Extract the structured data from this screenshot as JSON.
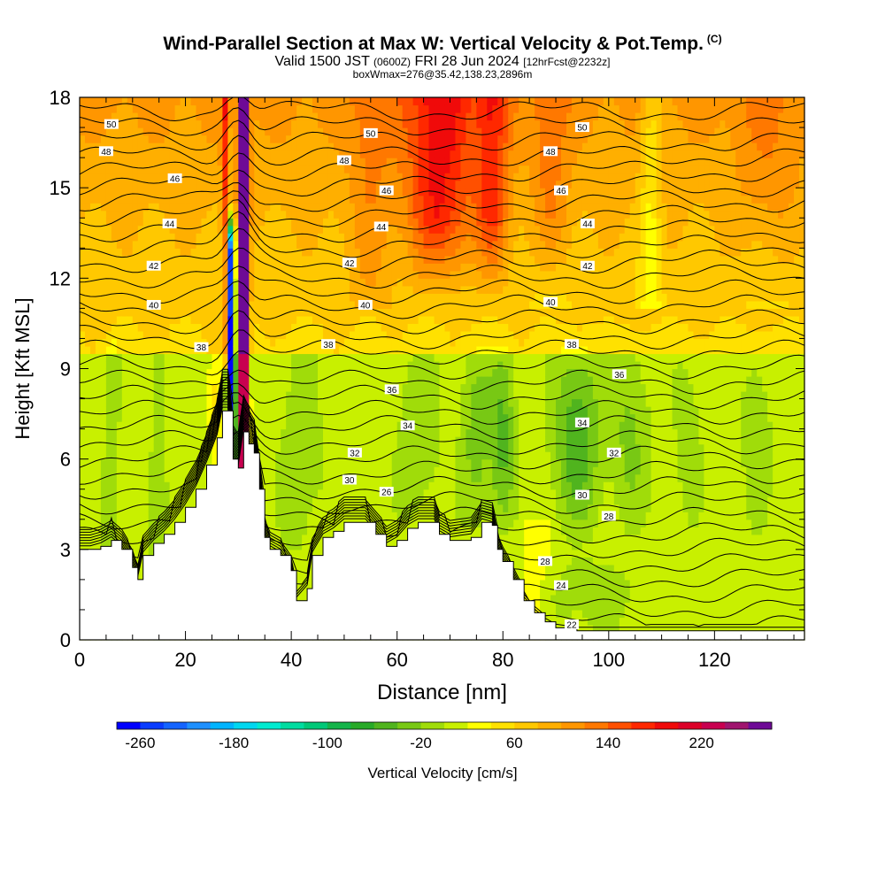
{
  "title": {
    "main": "Wind-Parallel Section at Max W: Vertical Velocity & Pot.Temp.",
    "copyright": "(C)",
    "valid_prefix": "Valid 1500 JST",
    "valid_utc": "(0600Z)",
    "valid_date": "FRI 28 Jun 2024",
    "forecast": "[12hrFcst@2232z]",
    "box_info": "boxWmax=276@35.42,138.23,2896m"
  },
  "chart_data": {
    "type": "heatmap",
    "xlabel": "Distance [nm]",
    "ylabel": "Height [Kft MSL]",
    "xlim": [
      0,
      137
    ],
    "ylim": [
      0,
      18
    ],
    "x_ticks": [
      "0",
      "20",
      "40",
      "60",
      "80",
      "100",
      "120"
    ],
    "y_ticks": [
      "0",
      "3",
      "6",
      "9",
      "12",
      "15",
      "18"
    ],
    "colorbar": {
      "label": "Vertical Velocity [cm/s]",
      "tick_labels": [
        "-260",
        "-180",
        "-100",
        "-20",
        "60",
        "140",
        "220"
      ],
      "min": -280,
      "max": 280,
      "step": 20
    },
    "terrain": [
      [
        0,
        3.0
      ],
      [
        2,
        3.0
      ],
      [
        4,
        3.1
      ],
      [
        6,
        3.3
      ],
      [
        8,
        3.0
      ],
      [
        10,
        2.4
      ],
      [
        11,
        2.0
      ],
      [
        12,
        2.8
      ],
      [
        14,
        3.2
      ],
      [
        16,
        3.5
      ],
      [
        18,
        3.9
      ],
      [
        20,
        4.4
      ],
      [
        22,
        5.0
      ],
      [
        24,
        5.8
      ],
      [
        26,
        6.7
      ],
      [
        27,
        7.6
      ],
      [
        28,
        7.6
      ],
      [
        29,
        6.0
      ],
      [
        30,
        5.7
      ],
      [
        31,
        6.9
      ],
      [
        32,
        6.5
      ],
      [
        33,
        6.2
      ],
      [
        34,
        5.0
      ],
      [
        35,
        3.4
      ],
      [
        36,
        3.0
      ],
      [
        38,
        2.8
      ],
      [
        40,
        2.3
      ],
      [
        41,
        1.3
      ],
      [
        43,
        1.7
      ],
      [
        44,
        2.8
      ],
      [
        46,
        3.4
      ],
      [
        48,
        3.6
      ],
      [
        50,
        3.9
      ],
      [
        54,
        3.9
      ],
      [
        56,
        3.5
      ],
      [
        58,
        3.1
      ],
      [
        60,
        3.3
      ],
      [
        62,
        3.7
      ],
      [
        64,
        3.9
      ],
      [
        67,
        3.9
      ],
      [
        68,
        3.5
      ],
      [
        70,
        3.3
      ],
      [
        74,
        3.4
      ],
      [
        76,
        3.9
      ],
      [
        78,
        3.8
      ],
      [
        79,
        3.0
      ],
      [
        80,
        2.6
      ],
      [
        82,
        2.0
      ],
      [
        84,
        1.3
      ],
      [
        86,
        0.9
      ],
      [
        88,
        0.6
      ],
      [
        90,
        0.4
      ],
      [
        94,
        0.3
      ],
      [
        100,
        0.3
      ],
      [
        110,
        0.3
      ],
      [
        120,
        0.3
      ],
      [
        130,
        0.3
      ],
      [
        137,
        0.3
      ]
    ],
    "theta_labels": [
      {
        "text": "50",
        "x": 6,
        "y": 17.1
      },
      {
        "text": "48",
        "x": 5,
        "y": 16.2
      },
      {
        "text": "46",
        "x": 18,
        "y": 15.3
      },
      {
        "text": "44",
        "x": 17,
        "y": 13.8
      },
      {
        "text": "42",
        "x": 14,
        "y": 12.4
      },
      {
        "text": "40",
        "x": 14,
        "y": 11.1
      },
      {
        "text": "38",
        "x": 23,
        "y": 9.7
      },
      {
        "text": "50",
        "x": 55,
        "y": 16.8
      },
      {
        "text": "48",
        "x": 50,
        "y": 15.9
      },
      {
        "text": "46",
        "x": 58,
        "y": 14.9
      },
      {
        "text": "44",
        "x": 57,
        "y": 13.7
      },
      {
        "text": "42",
        "x": 51,
        "y": 12.5
      },
      {
        "text": "40",
        "x": 54,
        "y": 11.1
      },
      {
        "text": "38",
        "x": 47,
        "y": 9.8
      },
      {
        "text": "36",
        "x": 59,
        "y": 8.3
      },
      {
        "text": "34",
        "x": 62,
        "y": 7.1
      },
      {
        "text": "32",
        "x": 52,
        "y": 6.2
      },
      {
        "text": "30",
        "x": 51,
        "y": 5.3
      },
      {
        "text": "26",
        "x": 58,
        "y": 4.9
      },
      {
        "text": "50",
        "x": 95,
        "y": 17.0
      },
      {
        "text": "48",
        "x": 89,
        "y": 16.2
      },
      {
        "text": "46",
        "x": 91,
        "y": 14.9
      },
      {
        "text": "44",
        "x": 96,
        "y": 13.8
      },
      {
        "text": "42",
        "x": 96,
        "y": 12.4
      },
      {
        "text": "40",
        "x": 89,
        "y": 11.2
      },
      {
        "text": "38",
        "x": 93,
        "y": 9.8
      },
      {
        "text": "36",
        "x": 102,
        "y": 8.8
      },
      {
        "text": "34",
        "x": 95,
        "y": 7.2
      },
      {
        "text": "32",
        "x": 101,
        "y": 6.2
      },
      {
        "text": "30",
        "x": 95,
        "y": 4.8
      },
      {
        "text": "28",
        "x": 100,
        "y": 4.1
      },
      {
        "text": "28",
        "x": 88,
        "y": 2.6
      },
      {
        "text": "24",
        "x": 91,
        "y": 1.8
      },
      {
        "text": "22",
        "x": 93,
        "y": 0.5
      }
    ]
  }
}
